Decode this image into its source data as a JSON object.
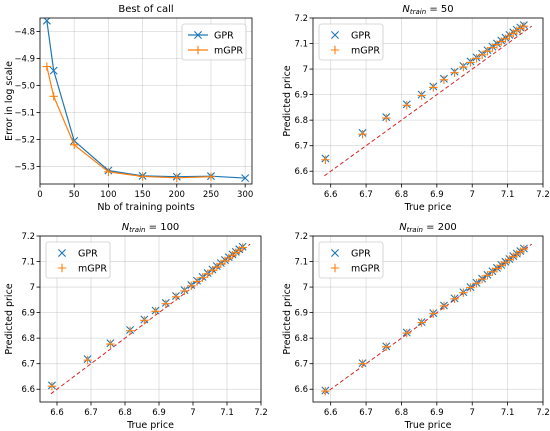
{
  "colors": {
    "gpr": "#1f77b4",
    "mgpr": "#ff7f0e",
    "diag": "#d62728"
  },
  "chart_data": [
    {
      "type": "line",
      "title": "Best of call",
      "xlabel": "Nb of training points",
      "ylabel": "Error in log scale",
      "xlim": [
        0,
        310
      ],
      "ylim": [
        -5.365,
        -4.75
      ],
      "xticks": [
        0,
        50,
        100,
        150,
        200,
        250,
        300
      ],
      "yticks": [
        -5.3,
        -5.2,
        -5.1,
        -5.0,
        -4.9,
        -4.8
      ],
      "ytick_labels": [
        "−5.3",
        "−5.2",
        "−5.1",
        "−5.0",
        "−4.9",
        "−4.8"
      ],
      "grid": true,
      "legend_position": "top-right",
      "series": [
        {
          "name": "GPR",
          "color": "#1f77b4",
          "marker": "x",
          "x": [
            10,
            20,
            50,
            100,
            150,
            200,
            250,
            300
          ],
          "y": [
            -4.76,
            -4.945,
            -5.205,
            -5.315,
            -5.335,
            -5.338,
            -5.336,
            -5.343
          ]
        },
        {
          "name": "mGPR",
          "color": "#ff7f0e",
          "marker": "+",
          "x": [
            10,
            20,
            50,
            100,
            150,
            200,
            250
          ],
          "y": [
            -4.93,
            -5.04,
            -5.22,
            -5.32,
            -5.337,
            -5.342,
            -5.338
          ]
        }
      ]
    },
    {
      "type": "scatter",
      "title_prefix": "N",
      "title_sub": "train",
      "title_suffix": " = 50",
      "xlabel": "True price",
      "ylabel": "Predicted price",
      "xlim": [
        6.55,
        7.2
      ],
      "ylim": [
        6.55,
        7.2
      ],
      "xticks": [
        6.6,
        6.7,
        6.8,
        6.9,
        7.0,
        7.1,
        7.2
      ],
      "yticks": [
        6.6,
        6.7,
        6.8,
        6.9,
        7.0,
        7.1,
        7.2
      ],
      "grid": true,
      "legend_position": "top-left",
      "diagonal": true,
      "series": [
        {
          "name": "GPR",
          "color": "#1f77b4",
          "marker": "x",
          "x": [
            6.585,
            6.69,
            6.757,
            6.815,
            6.857,
            6.89,
            6.92,
            6.95,
            6.975,
            6.995,
            7.012,
            7.028,
            7.043,
            7.057,
            7.07,
            7.082,
            7.094,
            7.105,
            7.116,
            7.126,
            7.136,
            7.146
          ],
          "y": [
            6.65,
            6.75,
            6.812,
            6.862,
            6.9,
            6.932,
            6.962,
            6.99,
            7.012,
            7.03,
            7.046,
            7.06,
            7.074,
            7.088,
            7.1,
            7.112,
            7.123,
            7.134,
            7.144,
            7.154,
            7.163,
            7.172
          ]
        },
        {
          "name": "mGPR",
          "color": "#ff7f0e",
          "marker": "+",
          "x": [
            6.585,
            6.69,
            6.757,
            6.815,
            6.857,
            6.89,
            6.92,
            6.95,
            6.975,
            6.995,
            7.012,
            7.028,
            7.043,
            7.057,
            7.07,
            7.082,
            7.094,
            7.105,
            7.116,
            7.126,
            7.136,
            7.146
          ],
          "y": [
            6.645,
            6.745,
            6.808,
            6.858,
            6.896,
            6.928,
            6.958,
            6.986,
            7.008,
            7.026,
            7.042,
            7.056,
            7.07,
            7.084,
            7.096,
            7.108,
            7.119,
            7.13,
            7.14,
            7.15,
            7.159,
            7.168
          ]
        }
      ]
    },
    {
      "type": "scatter",
      "title_prefix": "N",
      "title_sub": "train",
      "title_suffix": " = 100",
      "xlabel": "True price",
      "ylabel": "Predicted price",
      "xlim": [
        6.55,
        7.2
      ],
      "ylim": [
        6.55,
        7.2
      ],
      "xticks": [
        6.6,
        6.7,
        6.8,
        6.9,
        7.0,
        7.1,
        7.2
      ],
      "yticks": [
        6.6,
        6.7,
        6.8,
        6.9,
        7.0,
        7.1,
        7.2
      ],
      "grid": true,
      "legend_position": "top-left",
      "diagonal": true,
      "series": [
        {
          "name": "GPR",
          "color": "#1f77b4",
          "marker": "x",
          "x": [
            6.585,
            6.69,
            6.757,
            6.815,
            6.857,
            6.89,
            6.92,
            6.95,
            6.975,
            6.995,
            7.012,
            7.028,
            7.043,
            7.057,
            7.07,
            7.082,
            7.094,
            7.105,
            7.116,
            7.126,
            7.136,
            7.146
          ],
          "y": [
            6.615,
            6.718,
            6.78,
            6.832,
            6.873,
            6.908,
            6.938,
            6.965,
            6.988,
            7.008,
            7.025,
            7.04,
            7.055,
            7.069,
            7.082,
            7.094,
            7.106,
            7.117,
            7.128,
            7.138,
            7.148,
            7.158
          ]
        },
        {
          "name": "mGPR",
          "color": "#ff7f0e",
          "marker": "+",
          "x": [
            6.585,
            6.69,
            6.757,
            6.815,
            6.857,
            6.89,
            6.92,
            6.95,
            6.975,
            6.995,
            7.012,
            7.028,
            7.043,
            7.057,
            7.07,
            7.082,
            7.094,
            7.105,
            7.116,
            7.126,
            7.136,
            7.146
          ],
          "y": [
            6.612,
            6.714,
            6.777,
            6.829,
            6.87,
            6.905,
            6.935,
            6.962,
            6.985,
            7.005,
            7.022,
            7.037,
            7.052,
            7.066,
            7.079,
            7.091,
            7.103,
            7.114,
            7.125,
            7.135,
            7.145,
            7.155
          ]
        }
      ]
    },
    {
      "type": "scatter",
      "title_prefix": "N",
      "title_sub": "train",
      "title_suffix": " = 200",
      "xlabel": "True price",
      "ylabel": "Predicted price",
      "xlim": [
        6.55,
        7.2
      ],
      "ylim": [
        6.55,
        7.2
      ],
      "xticks": [
        6.6,
        6.7,
        6.8,
        6.9,
        7.0,
        7.1,
        7.2
      ],
      "yticks": [
        6.6,
        6.7,
        6.8,
        6.9,
        7.0,
        7.1,
        7.2
      ],
      "grid": true,
      "legend_position": "top-left",
      "diagonal": true,
      "series": [
        {
          "name": "GPR",
          "color": "#1f77b4",
          "marker": "x",
          "x": [
            6.585,
            6.69,
            6.757,
            6.815,
            6.857,
            6.89,
            6.92,
            6.95,
            6.975,
            6.995,
            7.012,
            7.028,
            7.043,
            7.057,
            7.07,
            7.082,
            7.094,
            7.105,
            7.116,
            7.126,
            7.136,
            7.146
          ],
          "y": [
            6.595,
            6.702,
            6.768,
            6.822,
            6.863,
            6.898,
            6.928,
            6.956,
            6.98,
            7.0,
            7.017,
            7.033,
            7.048,
            7.062,
            7.075,
            7.087,
            7.099,
            7.11,
            7.121,
            7.131,
            7.141,
            7.151
          ]
        },
        {
          "name": "mGPR",
          "color": "#ff7f0e",
          "marker": "+",
          "x": [
            6.585,
            6.69,
            6.757,
            6.815,
            6.857,
            6.89,
            6.92,
            6.95,
            6.975,
            6.995,
            7.012,
            7.028,
            7.043,
            7.057,
            7.07,
            7.082,
            7.094,
            7.105,
            7.116,
            7.126,
            7.136,
            7.146
          ],
          "y": [
            6.593,
            6.7,
            6.766,
            6.82,
            6.861,
            6.896,
            6.926,
            6.954,
            6.978,
            6.998,
            7.015,
            7.031,
            7.046,
            7.06,
            7.073,
            7.085,
            7.097,
            7.108,
            7.119,
            7.129,
            7.139,
            7.149
          ]
        }
      ]
    }
  ]
}
